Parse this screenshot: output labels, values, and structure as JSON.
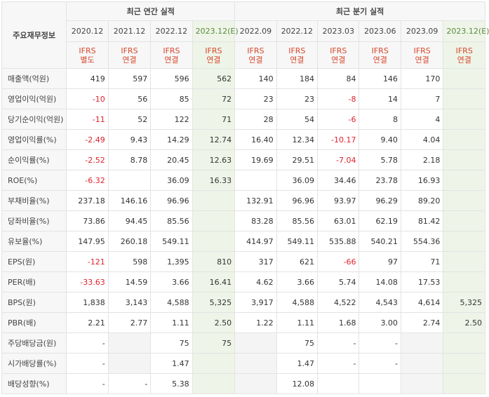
{
  "header": {
    "corner_label": "주요재무정보",
    "annual_group": "최근 연간 실적",
    "quarterly_group": "최근 분기 실적",
    "periods": [
      {
        "label": "2020.12",
        "est": false,
        "ifrs1": "IFRS",
        "ifrs2": "별도"
      },
      {
        "label": "2021.12",
        "est": false,
        "ifrs1": "IFRS",
        "ifrs2": "연결"
      },
      {
        "label": "2022.12",
        "est": false,
        "ifrs1": "IFRS",
        "ifrs2": "연결"
      },
      {
        "label": "2023.12(E)",
        "est": true,
        "ifrs1": "IFRS",
        "ifrs2": "연결"
      },
      {
        "label": "2022.09",
        "est": false,
        "ifrs1": "IFRS",
        "ifrs2": "연결"
      },
      {
        "label": "2022.12",
        "est": false,
        "ifrs1": "IFRS",
        "ifrs2": "연결"
      },
      {
        "label": "2023.03",
        "est": false,
        "ifrs1": "IFRS",
        "ifrs2": "연결"
      },
      {
        "label": "2023.06",
        "est": false,
        "ifrs1": "IFRS",
        "ifrs2": "연결"
      },
      {
        "label": "2023.09",
        "est": false,
        "ifrs1": "IFRS",
        "ifrs2": "연결"
      },
      {
        "label": "2023.12(E)",
        "est": true,
        "ifrs1": "IFRS",
        "ifrs2": "연결"
      }
    ]
  },
  "rows": [
    {
      "label": "매출액(억원)",
      "group_start": true,
      "values": [
        "419",
        "597",
        "596",
        "562",
        "140",
        "184",
        "84",
        "146",
        "170",
        ""
      ]
    },
    {
      "label": "영업이익(억원)",
      "values": [
        "-10",
        "56",
        "85",
        "72",
        "23",
        "23",
        "-8",
        "14",
        "7",
        ""
      ]
    },
    {
      "label": "당기순이익(억원)",
      "values": [
        "-11",
        "52",
        "122",
        "71",
        "28",
        "54",
        "-6",
        "8",
        "4",
        ""
      ]
    },
    {
      "label": "영업이익률(%)",
      "group_start": true,
      "values": [
        "-2.49",
        "9.43",
        "14.29",
        "12.74",
        "16.40",
        "12.34",
        "-10.17",
        "9.40",
        "4.04",
        ""
      ]
    },
    {
      "label": "순이익률(%)",
      "values": [
        "-2.52",
        "8.78",
        "20.45",
        "12.63",
        "19.69",
        "29.51",
        "-7.04",
        "5.78",
        "2.18",
        ""
      ]
    },
    {
      "label": "ROE(%)",
      "values": [
        "-6.32",
        "",
        "36.09",
        "16.33",
        "",
        "36.09",
        "34.46",
        "23.78",
        "16.93",
        ""
      ]
    },
    {
      "label": "부채비율(%)",
      "group_start": true,
      "values": [
        "237.18",
        "146.16",
        "96.96",
        "",
        "132.91",
        "96.96",
        "93.97",
        "96.29",
        "89.20",
        ""
      ]
    },
    {
      "label": "당좌비율(%)",
      "values": [
        "73.86",
        "94.45",
        "85.56",
        "",
        "83.28",
        "85.56",
        "63.01",
        "62.19",
        "81.42",
        ""
      ]
    },
    {
      "label": "유보율(%)",
      "values": [
        "147.95",
        "260.18",
        "549.11",
        "",
        "414.97",
        "549.11",
        "535.88",
        "540.21",
        "554.36",
        ""
      ]
    },
    {
      "label": "EPS(원)",
      "group_start": true,
      "values": [
        "-121",
        "598",
        "1,395",
        "810",
        "317",
        "621",
        "-66",
        "97",
        "71",
        ""
      ]
    },
    {
      "label": "PER(배)",
      "values": [
        "-33.63",
        "14.59",
        "3.66",
        "16.41",
        "4.62",
        "3.66",
        "5.74",
        "14.08",
        "17.53",
        ""
      ]
    },
    {
      "label": "BPS(원)",
      "values": [
        "1,838",
        "3,143",
        "4,588",
        "5,325",
        "3,917",
        "4,588",
        "4,522",
        "4,543",
        "4,614",
        "5,325"
      ]
    },
    {
      "label": "PBR(배)",
      "values": [
        "2.21",
        "2.77",
        "1.11",
        "2.50",
        "1.22",
        "1.11",
        "1.68",
        "3.00",
        "2.74",
        "2.50"
      ]
    },
    {
      "label": "주당배당금(원)",
      "group_start": true,
      "values": [
        "-",
        "",
        "75",
        "75",
        "",
        "75",
        "-",
        "-",
        "",
        ""
      ],
      "blank": [
        1,
        4,
        8,
        9
      ]
    },
    {
      "label": "시가배당률(%)",
      "values": [
        "-",
        "",
        "1.47",
        "",
        "",
        "1.47",
        "-",
        "-",
        "",
        ""
      ],
      "blank": [
        1,
        4,
        8,
        9
      ]
    },
    {
      "label": "배당성향(%)",
      "values": [
        "-",
        "-",
        "5.38",
        "",
        "",
        "12.08",
        "",
        "",
        "",
        ""
      ],
      "blank": [
        4,
        8,
        9
      ]
    }
  ],
  "colors": {
    "negative": "#e0222e",
    "estimate_bg": "#eef5e8",
    "ifrs_text": "#d9472b",
    "header_bg": "#f7f7f7"
  }
}
